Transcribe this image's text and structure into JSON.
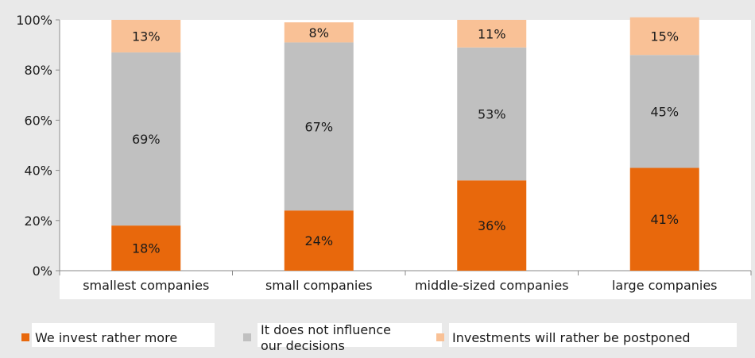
{
  "chart_data": {
    "type": "bar",
    "stacked": true,
    "categories": [
      "smallest companies",
      "small companies",
      "middle-sized companies",
      "large companies"
    ],
    "series": [
      {
        "name": "We invest rather more",
        "values": [
          18,
          24,
          36,
          41
        ],
        "labels": [
          "18%",
          "24%",
          "36%",
          "41%"
        ],
        "color": "#e8680c"
      },
      {
        "name": "It does not influence our decisions",
        "values": [
          69,
          67,
          53,
          45
        ],
        "labels": [
          "69%",
          "67%",
          "53%",
          "45%"
        ],
        "color": "#c0c0c0"
      },
      {
        "name": "Investments will rather be postponed",
        "values": [
          13,
          8,
          11,
          15
        ],
        "labels": [
          "13%",
          "8%",
          "11%",
          "15%"
        ],
        "color": "#f9c196"
      }
    ],
    "ylim": [
      0,
      100
    ],
    "yticks": [
      "0%",
      "20%",
      "40%",
      "60%",
      "80%",
      "100%"
    ],
    "grid": false,
    "legend_placement": "bottom"
  }
}
